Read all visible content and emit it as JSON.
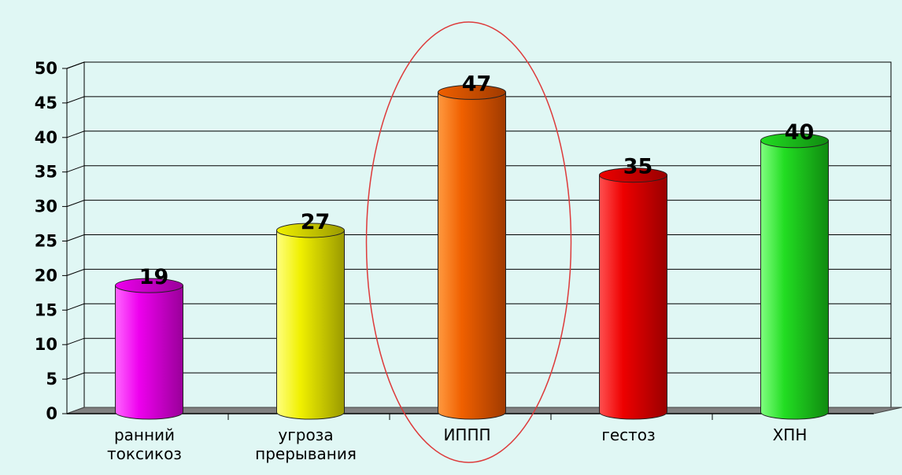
{
  "chart_data": {
    "type": "bar",
    "categories": [
      [
        "ранний",
        "токсикоз"
      ],
      [
        "угроза",
        "прерывания"
      ],
      [
        "ИППП"
      ],
      [
        "гестоз"
      ],
      [
        "ХПН"
      ]
    ],
    "values": [
      19,
      27,
      47,
      35,
      40
    ],
    "data_labels": [
      "19",
      "27",
      "47",
      "35",
      "40"
    ],
    "y_ticks": [
      "0",
      "5",
      "10",
      "15",
      "20",
      "25",
      "30",
      "35",
      "40",
      "45",
      "50"
    ],
    "ylim": [
      0,
      50
    ],
    "grid": true,
    "highlighted_category_index": 2,
    "highlight_color": "#dd3b3b",
    "bar_colors": [
      {
        "light": "#ff66ff",
        "mid": "#ee00ee",
        "dark": "#990099"
      },
      {
        "light": "#ffff80",
        "mid": "#f0f000",
        "dark": "#9a9a00"
      },
      {
        "light": "#ff9a40",
        "mid": "#f06000",
        "dark": "#a03a00"
      },
      {
        "light": "#ff5050",
        "mid": "#ee0000",
        "dark": "#990000"
      },
      {
        "light": "#80ff80",
        "mid": "#22dd22",
        "dark": "#108a10"
      }
    ],
    "background_color": "#e0f7f4",
    "floor_color": "#808080"
  }
}
